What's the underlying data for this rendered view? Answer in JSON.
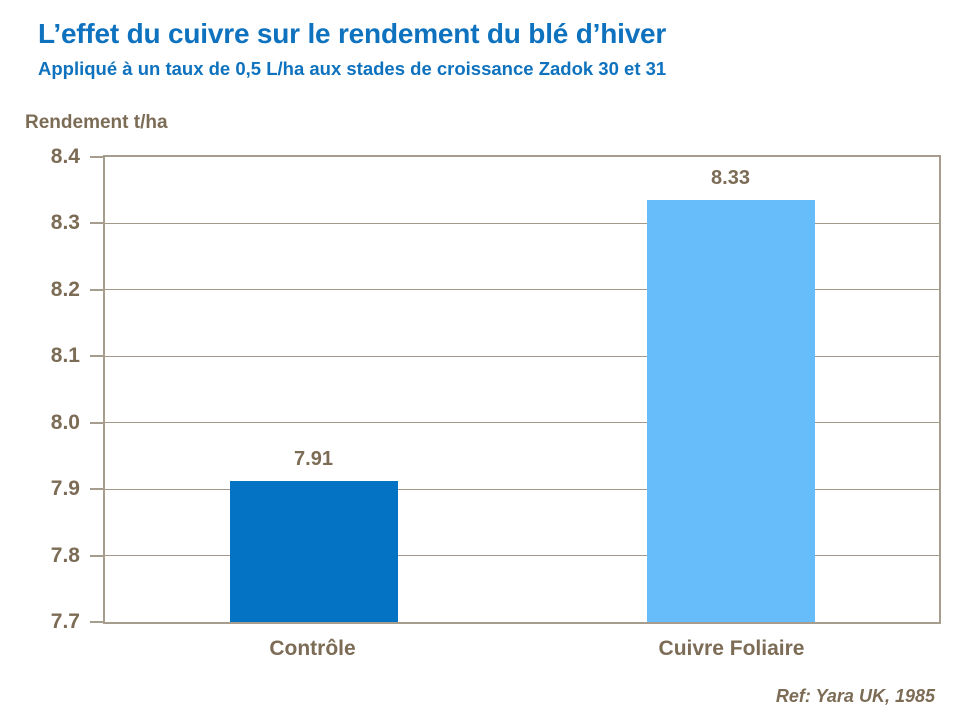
{
  "header": {
    "title": "L’effet du cuivre sur le rendement du blé d’hiver",
    "subtitle": "Appliqué à un taux de 0,5 L/ha aux stades de croissance Zadok 30 et 31"
  },
  "chart_data": {
    "type": "bar",
    "title": "L’effet du cuivre sur le rendement du blé d’hiver",
    "subtitle": "Appliqué à un taux de 0,5 L/ha aux stades de croissance Zadok 30 et 31",
    "ylabel": "Rendement t/ha",
    "xlabel": "",
    "categories": [
      "Contrôle",
      "Cuivre Foliaire"
    ],
    "values": [
      7.91,
      8.33
    ],
    "value_labels": [
      "7.91",
      "8.33"
    ],
    "bar_colors": [
      "#0473C4",
      "#66BDF9"
    ],
    "ylim": [
      7.7,
      8.4
    ],
    "yticks": [
      "8.4",
      "8.3",
      "8.2",
      "8.1",
      "8.0",
      "7.9",
      "7.8",
      "7.7"
    ],
    "grid": true,
    "legend": "none"
  },
  "footer": {
    "reference": "Ref: Yara UK, 1985"
  },
  "colors": {
    "title_blue": "#0E72BE",
    "axis_text": "#7C6C56",
    "axis_line": "#A79D8F",
    "gridline": "#A39989",
    "bar_control": "#0473C4",
    "bar_copper": "#66BDF9",
    "background": "#FFFFFF"
  }
}
